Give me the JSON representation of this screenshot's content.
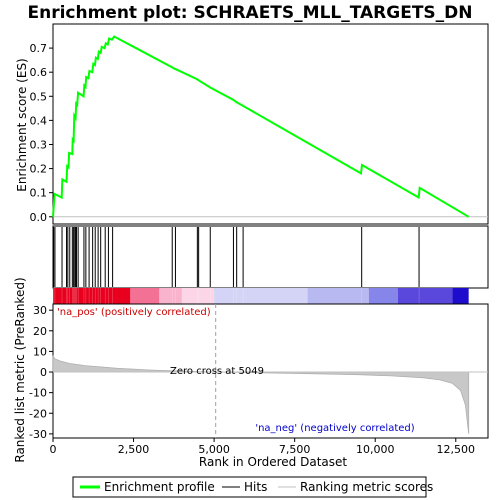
{
  "chart_data": {
    "type": "line",
    "title": "Enrichment plot: SCHRAETS_MLL_TARGETS_DN",
    "es_panel": {
      "ylabel": "Enrichment score (ES)",
      "ylim": [
        -0.03,
        0.8
      ],
      "yticks": [
        0.0,
        0.1,
        0.2,
        0.3,
        0.4,
        0.5,
        0.6,
        0.7
      ],
      "ytick_labels": [
        "0.0",
        "0.1",
        "0.2",
        "0.3",
        "0.4",
        "0.5",
        "0.6",
        "0.7"
      ],
      "line_color": "#00ff00",
      "points": [
        [
          0,
          0.0
        ],
        [
          50,
          0.095
        ],
        [
          270,
          0.08
        ],
        [
          290,
          0.155
        ],
        [
          420,
          0.145
        ],
        [
          440,
          0.21
        ],
        [
          480,
          0.205
        ],
        [
          500,
          0.265
        ],
        [
          600,
          0.26
        ],
        [
          610,
          0.32
        ],
        [
          640,
          0.315
        ],
        [
          660,
          0.42
        ],
        [
          700,
          0.41
        ],
        [
          720,
          0.47
        ],
        [
          750,
          0.465
        ],
        [
          780,
          0.515
        ],
        [
          950,
          0.5
        ],
        [
          970,
          0.545
        ],
        [
          1010,
          0.54
        ],
        [
          1030,
          0.58
        ],
        [
          1100,
          0.575
        ],
        [
          1130,
          0.605
        ],
        [
          1220,
          0.6
        ],
        [
          1250,
          0.635
        ],
        [
          1300,
          0.63
        ],
        [
          1330,
          0.66
        ],
        [
          1390,
          0.655
        ],
        [
          1420,
          0.685
        ],
        [
          1480,
          0.68
        ],
        [
          1510,
          0.705
        ],
        [
          1600,
          0.7
        ],
        [
          1640,
          0.72
        ],
        [
          1700,
          0.715
        ],
        [
          1740,
          0.74
        ],
        [
          1830,
          0.735
        ],
        [
          1900,
          0.748
        ],
        [
          3700,
          0.62
        ],
        [
          3760,
          0.615
        ],
        [
          3850,
          0.61
        ],
        [
          4480,
          0.57
        ],
        [
          4530,
          0.565
        ],
        [
          4900,
          0.535
        ],
        [
          5600,
          0.485
        ],
        [
          5700,
          0.475
        ],
        [
          5900,
          0.46
        ],
        [
          9560,
          0.18
        ],
        [
          9590,
          0.215
        ],
        [
          11350,
          0.08
        ],
        [
          11380,
          0.12
        ],
        [
          12900,
          0.0
        ]
      ]
    },
    "hits": [
      20,
      60,
      280,
      420,
      460,
      520,
      600,
      640,
      660,
      700,
      730,
      780,
      960,
      1020,
      1120,
      1230,
      1310,
      1400,
      1480,
      1620,
      1720,
      1850,
      3700,
      3800,
      4480,
      4520,
      4880,
      5600,
      5700,
      5900,
      9580,
      11360
    ],
    "color_bar": {
      "segments": [
        {
          "from": 0,
          "to": 2400,
          "color": "#e8001e"
        },
        {
          "from": 2400,
          "to": 3300,
          "color": "#f37195"
        },
        {
          "from": 3300,
          "to": 4000,
          "color": "#f9b3cc"
        },
        {
          "from": 4000,
          "to": 5000,
          "color": "#fcd5e6"
        },
        {
          "from": 5000,
          "to": 7900,
          "color": "#d4d4f7"
        },
        {
          "from": 7900,
          "to": 9800,
          "color": "#b9b9f1"
        },
        {
          "from": 9800,
          "to": 10700,
          "color": "#8585ea"
        },
        {
          "from": 10700,
          "to": 12400,
          "color": "#5a47dc"
        },
        {
          "from": 12400,
          "to": 12900,
          "color": "#1d0ccb"
        }
      ]
    },
    "metric_panel": {
      "ylabel": "Ranked list metric (PreRanked)",
      "xlabel": "Rank in Ordered Dataset",
      "xlim": [
        0,
        13500
      ],
      "xticks": [
        0,
        2500,
        5000,
        7500,
        10000,
        12500
      ],
      "xtick_labels": [
        "0",
        "2,500",
        "5,000",
        "7,500",
        "10,000",
        "12,500"
      ],
      "ylim": [
        -32,
        33
      ],
      "yticks": [
        30,
        20,
        10,
        0,
        -10,
        -20,
        -30
      ],
      "ytick_labels": [
        "30",
        "20",
        "10",
        "0",
        "-10",
        "-20",
        "-30"
      ],
      "curve": [
        [
          0,
          8
        ],
        [
          50,
          6.5
        ],
        [
          200,
          5.5
        ],
        [
          500,
          4.2
        ],
        [
          1000,
          3.1
        ],
        [
          2000,
          1.8
        ],
        [
          3000,
          1.0
        ],
        [
          4000,
          0.4
        ],
        [
          5049,
          0.0
        ],
        [
          6500,
          -0.4
        ],
        [
          8000,
          -0.8
        ],
        [
          9500,
          -1.3
        ],
        [
          10500,
          -1.9
        ],
        [
          11500,
          -2.8
        ],
        [
          12000,
          -3.8
        ],
        [
          12400,
          -5.5
        ],
        [
          12650,
          -9
        ],
        [
          12800,
          -16
        ],
        [
          12900,
          -30
        ]
      ],
      "zero_cross_rank": 5049,
      "zero_cross_label": "Zero cross at 5049",
      "pos_label": "'na_pos' (positively correlated)",
      "neg_label": "'na_neg' (negatively correlated)"
    },
    "legend": {
      "items": [
        "Enrichment profile",
        "Hits",
        "Ranking metric scores"
      ],
      "colors": [
        "#00ff00",
        "#000000",
        "#c0c0c0"
      ]
    }
  }
}
